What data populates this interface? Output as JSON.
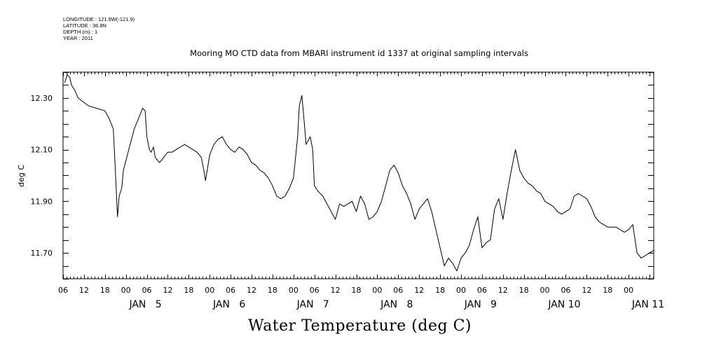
{
  "meta": {
    "longitude": "LONGITUDE : 121.9W(-121.9)",
    "latitude": "LATITUDE : 36.8N",
    "depth": "DEPTH (m) : 1",
    "year": "YEAR : 2011"
  },
  "chart_data": {
    "type": "line",
    "title": "Mooring MO CTD data from MBARI instrument id 1337 at original sampling intervals",
    "xlabel": "Water Temperature (deg C)",
    "ylabel": "deg C",
    "xlim": [
      4.0,
      11.05
    ],
    "x_unit": "days of January 2011",
    "ylim": [
      11.6,
      12.4
    ],
    "y_ticks": [
      11.7,
      11.9,
      12.1,
      12.3
    ],
    "y_tick_labels": [
      "11.70",
      "11.90",
      "12.10",
      "12.30"
    ],
    "hour_tick_labels": [
      "06",
      "12",
      "18",
      "00",
      "06",
      "12",
      "18",
      "00",
      "06",
      "12",
      "18",
      "00",
      "06",
      "12",
      "18",
      "00",
      "06",
      "12",
      "18",
      "00",
      "06",
      "12",
      "18",
      "00",
      "06",
      "12",
      "18",
      "00"
    ],
    "day_labels": [
      {
        "label": "JAN   5",
        "day": 5
      },
      {
        "label": "JAN   6",
        "day": 6
      },
      {
        "label": "JAN   7",
        "day": 7
      },
      {
        "label": "JAN   8",
        "day": 8
      },
      {
        "label": "JAN   9",
        "day": 9
      },
      {
        "label": "JAN 10",
        "day": 10
      },
      {
        "label": "JAN 11",
        "day": 11
      }
    ],
    "grid": false,
    "series": [
      {
        "color": "#000000",
        "x": [
          4.02,
          4.05,
          4.08,
          4.1,
          4.14,
          4.18,
          4.22,
          4.3,
          4.4,
          4.5,
          4.55,
          4.6,
          4.62,
          4.65,
          4.67,
          4.7,
          4.72,
          4.76,
          4.8,
          4.85,
          4.9,
          4.95,
          4.98,
          5.0,
          5.03,
          5.05,
          5.08,
          5.1,
          5.15,
          5.18,
          5.2,
          5.25,
          5.3,
          5.35,
          5.4,
          5.45,
          5.5,
          5.55,
          5.6,
          5.65,
          5.68,
          5.7,
          5.75,
          5.8,
          5.85,
          5.9,
          5.95,
          6.0,
          6.05,
          6.1,
          6.15,
          6.2,
          6.25,
          6.3,
          6.35,
          6.4,
          6.45,
          6.5,
          6.55,
          6.6,
          6.65,
          6.7,
          6.75,
          6.8,
          6.82,
          6.85,
          6.88,
          6.9,
          6.95,
          6.98,
          7.0,
          7.04,
          7.07,
          7.1,
          7.15,
          7.2,
          7.25,
          7.3,
          7.35,
          7.4,
          7.45,
          7.5,
          7.55,
          7.6,
          7.65,
          7.7,
          7.75,
          7.8,
          7.85,
          7.9,
          7.95,
          8.0,
          8.05,
          8.1,
          8.15,
          8.2,
          8.25,
          8.3,
          8.35,
          8.4,
          8.45,
          8.5,
          8.55,
          8.6,
          8.65,
          8.7,
          8.75,
          8.8,
          8.85,
          8.9,
          8.95,
          9.0,
          9.05,
          9.1,
          9.15,
          9.2,
          9.25,
          9.3,
          9.35,
          9.4,
          9.45,
          9.5,
          9.55,
          9.6,
          9.65,
          9.7,
          9.75,
          9.8,
          9.85,
          9.9,
          9.95,
          10.0,
          10.05,
          10.1,
          10.15,
          10.2,
          10.25,
          10.3,
          10.35,
          10.4,
          10.45,
          10.5,
          10.55,
          10.6,
          10.65,
          10.7,
          10.75,
          10.8,
          10.85,
          10.9,
          10.95,
          11.0,
          11.05
        ],
        "y": [
          12.36,
          12.39,
          12.38,
          12.35,
          12.33,
          12.3,
          12.29,
          12.27,
          12.26,
          12.25,
          12.22,
          12.18,
          12.05,
          11.84,
          11.92,
          11.95,
          12.02,
          12.07,
          12.12,
          12.18,
          12.22,
          12.26,
          12.25,
          12.15,
          12.1,
          12.09,
          12.11,
          12.07,
          12.05,
          12.06,
          12.07,
          12.09,
          12.09,
          12.1,
          12.11,
          12.12,
          12.11,
          12.1,
          12.09,
          12.07,
          12.02,
          11.98,
          12.08,
          12.12,
          12.14,
          12.15,
          12.12,
          12.1,
          12.09,
          12.11,
          12.1,
          12.08,
          12.05,
          12.04,
          12.02,
          12.01,
          11.99,
          11.96,
          11.92,
          11.91,
          11.92,
          11.95,
          11.99,
          12.15,
          12.27,
          12.31,
          12.2,
          12.12,
          12.15,
          12.1,
          11.96,
          11.94,
          11.93,
          11.92,
          11.89,
          11.86,
          11.83,
          11.89,
          11.88,
          11.89,
          11.9,
          11.86,
          11.92,
          11.89,
          11.83,
          11.84,
          11.86,
          11.9,
          11.96,
          12.02,
          12.04,
          12.01,
          11.96,
          11.93,
          11.89,
          11.83,
          11.87,
          11.89,
          11.91,
          11.86,
          11.79,
          11.72,
          11.65,
          11.68,
          11.66,
          11.63,
          11.68,
          11.7,
          11.73,
          11.79,
          11.84,
          11.72,
          11.74,
          11.75,
          11.87,
          11.91,
          11.83,
          11.93,
          12.02,
          12.1,
          12.02,
          11.99,
          11.97,
          11.96,
          11.94,
          11.93,
          11.9,
          11.89,
          11.88,
          11.86,
          11.85,
          11.86,
          11.87,
          11.92,
          11.93,
          11.92,
          11.91,
          11.88,
          11.84,
          11.82,
          11.81,
          11.8,
          11.8,
          11.8,
          11.79,
          11.78,
          11.79,
          11.81,
          11.7,
          11.68,
          11.69,
          11.7,
          11.71
        ]
      }
    ]
  }
}
